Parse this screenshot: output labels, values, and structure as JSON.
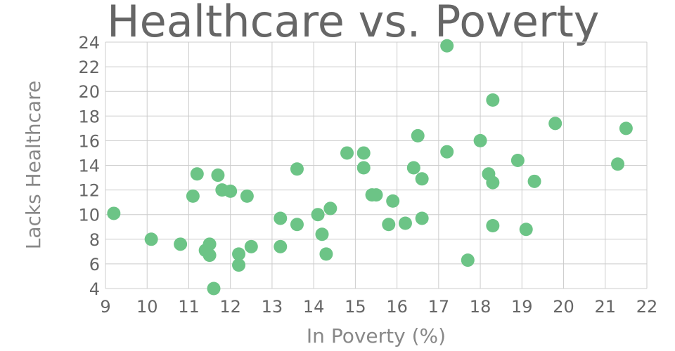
{
  "chart_data": {
    "type": "scatter",
    "title": "Healthcare vs. Poverty",
    "xlabel": "In Poverty (%)",
    "ylabel": "Lacks Healthcare",
    "xlim": [
      9,
      22
    ],
    "ylim": [
      4,
      24
    ],
    "xticks": [
      9,
      10,
      11,
      12,
      13,
      14,
      15,
      16,
      17,
      18,
      19,
      20,
      21,
      22
    ],
    "yticks": [
      4,
      6,
      8,
      10,
      12,
      14,
      16,
      18,
      20,
      22,
      24
    ],
    "grid": true,
    "marker_color": "#6cc486",
    "series": [
      {
        "points": [
          [
            9.2,
            10.1
          ],
          [
            10.1,
            8.0
          ],
          [
            10.8,
            7.6
          ],
          [
            11.1,
            11.5
          ],
          [
            11.2,
            13.3
          ],
          [
            11.4,
            7.1
          ],
          [
            11.5,
            6.7
          ],
          [
            11.5,
            7.6
          ],
          [
            11.6,
            4.0
          ],
          [
            11.7,
            13.2
          ],
          [
            11.8,
            12.0
          ],
          [
            12.0,
            11.9
          ],
          [
            12.2,
            6.8
          ],
          [
            12.2,
            5.9
          ],
          [
            12.4,
            11.5
          ],
          [
            12.5,
            7.4
          ],
          [
            13.2,
            9.7
          ],
          [
            13.2,
            7.4
          ],
          [
            13.6,
            9.2
          ],
          [
            13.6,
            13.7
          ],
          [
            14.1,
            10.0
          ],
          [
            14.2,
            8.4
          ],
          [
            14.3,
            6.8
          ],
          [
            14.4,
            10.5
          ],
          [
            14.8,
            15.0
          ],
          [
            15.2,
            15.0
          ],
          [
            15.2,
            13.8
          ],
          [
            15.4,
            11.6
          ],
          [
            15.5,
            11.6
          ],
          [
            15.8,
            9.2
          ],
          [
            15.9,
            11.1
          ],
          [
            16.2,
            9.3
          ],
          [
            16.4,
            13.8
          ],
          [
            16.5,
            16.4
          ],
          [
            16.6,
            12.9
          ],
          [
            16.6,
            9.7
          ],
          [
            17.2,
            23.7
          ],
          [
            17.2,
            15.1
          ],
          [
            17.7,
            6.3
          ],
          [
            18.0,
            16.0
          ],
          [
            18.2,
            13.3
          ],
          [
            18.3,
            19.3
          ],
          [
            18.3,
            12.6
          ],
          [
            18.3,
            9.1
          ],
          [
            18.9,
            14.4
          ],
          [
            19.1,
            8.8
          ],
          [
            19.3,
            12.7
          ],
          [
            19.8,
            17.4
          ],
          [
            21.3,
            14.1
          ],
          [
            21.5,
            17.0
          ]
        ]
      }
    ]
  }
}
